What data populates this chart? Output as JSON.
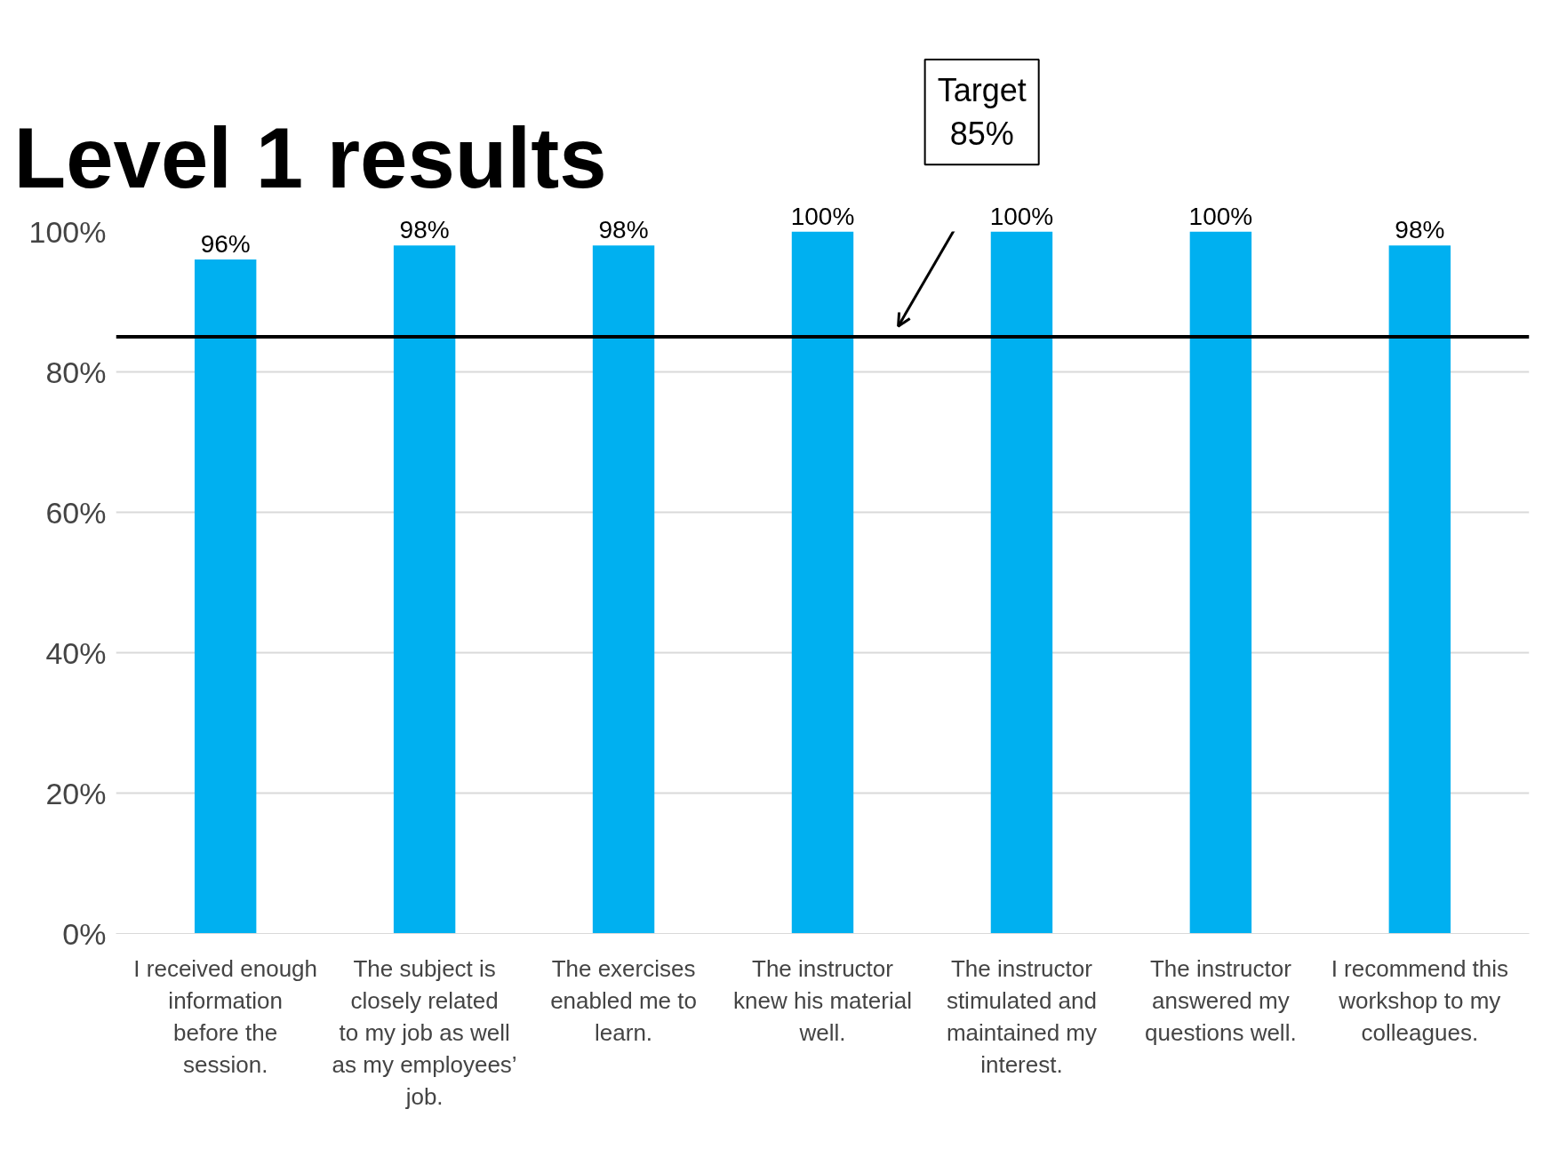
{
  "chart_data": {
    "type": "bar",
    "title": "Level 1 results",
    "categories": [
      "I received enough information before the session.",
      "The subject is closely related to my job as well as my employees’ job.",
      "The exercises enabled me to learn.",
      "The instructor knew his material well.",
      "The instructor stimulated and maintained my interest.",
      "The instructor answered my questions well.",
      "I recommend this workshop to my colleagues."
    ],
    "values": [
      96,
      98,
      98,
      100,
      100,
      100,
      98
    ],
    "value_labels": [
      "96%",
      "98%",
      "98%",
      "100%",
      "100%",
      "100%",
      "98%"
    ],
    "color": "#00b0f0",
    "ylim": [
      0,
      100
    ],
    "yticks": [
      {
        "value": 0,
        "label": "0%"
      },
      {
        "value": 20,
        "label": "20%"
      },
      {
        "value": 40,
        "label": "40%"
      },
      {
        "value": 60,
        "label": "60%"
      },
      {
        "value": 80,
        "label": "80%"
      },
      {
        "value": 100,
        "label": "100%"
      }
    ],
    "grid": "y",
    "ref_lines": [
      {
        "axis": "y",
        "value": 85,
        "label": "Target 85%",
        "color": "#000000"
      }
    ]
  }
}
